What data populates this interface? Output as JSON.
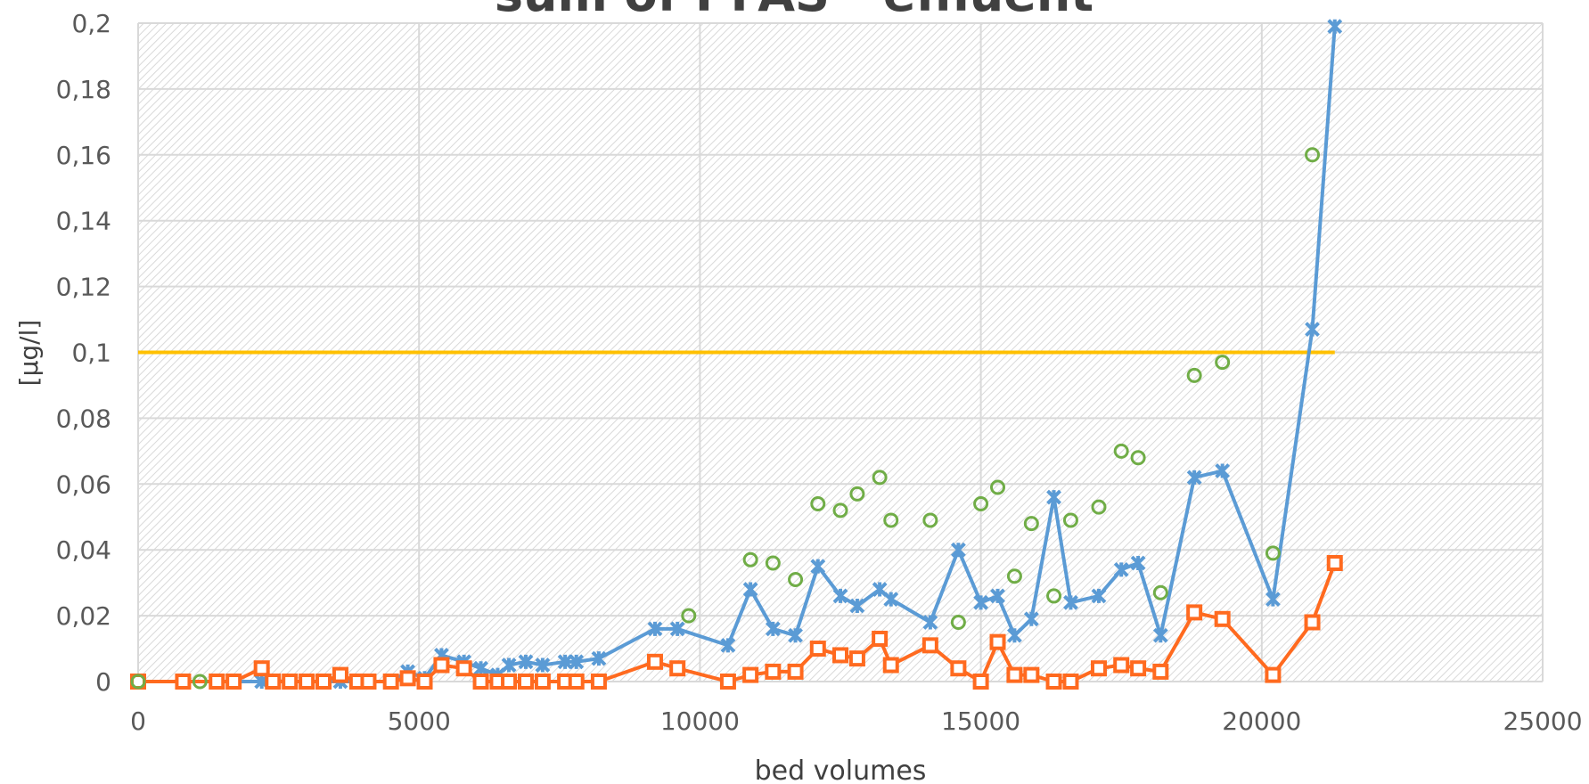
{
  "chart_data": {
    "type": "line",
    "title": "sum of PFAS - effluent",
    "x_label": "bed volumes",
    "y_label": "[µg/l]",
    "xlim": [
      0,
      25000
    ],
    "xticks": [
      0,
      5000,
      10000,
      15000,
      20000,
      25000
    ],
    "ylim": [
      0,
      0.2
    ],
    "yticks": [
      0,
      {
        "value": 0.02,
        "label": "0,02"
      },
      {
        "value": 0.04,
        "label": "0,04"
      },
      {
        "value": 0.06,
        "label": "0,06"
      },
      {
        "value": 0.08,
        "label": "0,08"
      },
      {
        "value": 0.1,
        "label": "0,1"
      },
      {
        "value": 0.12,
        "label": "0,12"
      },
      {
        "value": 0.14,
        "label": "0,14"
      },
      {
        "value": 0.16,
        "label": "0,16"
      },
      {
        "value": 0.18,
        "label": "0,18"
      },
      {
        "value": 0.2,
        "label": "0,2"
      }
    ],
    "grid": true,
    "series": [
      {
        "color": "#ffc000",
        "marker": "none",
        "line": true,
        "x": [
          0,
          21300
        ],
        "values": [
          0.1,
          0.1
        ]
      },
      {
        "color": "#5b9bd5",
        "marker": "cross",
        "line": true,
        "x": [
          0,
          800,
          1400,
          1700,
          2200,
          2400,
          2700,
          3000,
          3300,
          3600,
          3900,
          4100,
          4500,
          4800,
          5100,
          5400,
          5800,
          6100,
          6400,
          6600,
          6900,
          7200,
          7600,
          7800,
          8200,
          9200,
          9600,
          10500,
          10900,
          11300,
          11700,
          12100,
          12500,
          12800,
          13200,
          13400,
          14100,
          14600,
          15000,
          15300,
          15600,
          15900,
          16300,
          16600,
          17100,
          17500,
          17800,
          18200,
          18800,
          19300,
          20200,
          20900,
          21300
        ],
        "values": [
          0,
          0,
          0,
          0,
          0,
          0,
          0,
          0,
          0,
          0,
          0,
          0,
          0,
          0.003,
          0.001,
          0.008,
          0.006,
          0.004,
          0.002,
          0.005,
          0.006,
          0.005,
          0.006,
          0.006,
          0.007,
          0.016,
          0.016,
          0.011,
          0.028,
          0.016,
          0.014,
          0.035,
          0.026,
          0.023,
          0.028,
          0.025,
          0.018,
          0.04,
          0.024,
          0.026,
          0.014,
          0.019,
          0.056,
          0.024,
          0.026,
          0.034,
          0.036,
          0.014,
          0.062,
          0.064,
          0.025,
          0.107,
          0.199
        ]
      },
      {
        "color": "#ff6a1f",
        "marker": "square",
        "line": true,
        "x": [
          0,
          800,
          1400,
          1700,
          2200,
          2400,
          2700,
          3000,
          3300,
          3600,
          3900,
          4100,
          4500,
          4800,
          5100,
          5400,
          5800,
          6100,
          6400,
          6600,
          6900,
          7200,
          7600,
          7800,
          8200,
          9200,
          9600,
          10500,
          10900,
          11300,
          11700,
          12100,
          12500,
          12800,
          13200,
          13400,
          14100,
          14600,
          15000,
          15300,
          15600,
          15900,
          16300,
          16600,
          17100,
          17500,
          17800,
          18200,
          18800,
          19300,
          20200,
          20900,
          21300
        ],
        "values": [
          0,
          0,
          0,
          0,
          0.004,
          0,
          0,
          0,
          0,
          0.002,
          0,
          0,
          0,
          0.001,
          0,
          0.005,
          0.004,
          0,
          0,
          0,
          0,
          0,
          0,
          0,
          0,
          0.006,
          0.004,
          0,
          0.002,
          0.003,
          0.003,
          0.01,
          0.008,
          0.007,
          0.013,
          0.005,
          0.011,
          0.004,
          0,
          0.012,
          0.002,
          0.002,
          0,
          0,
          0.004,
          0.005,
          0.004,
          0.003,
          0.021,
          0.019,
          0.002,
          0.018,
          0.036
        ]
      },
      {
        "color": "#70ad47",
        "marker": "circle",
        "line": false,
        "x": [
          0,
          1100,
          9800,
          10900,
          11300,
          11700,
          12100,
          12500,
          12800,
          13200,
          13400,
          14100,
          14600,
          15000,
          15300,
          15600,
          15900,
          16300,
          16600,
          17100,
          17500,
          17800,
          18200,
          18800,
          19300,
          20200,
          20900
        ],
        "values": [
          0,
          0,
          0.02,
          0.037,
          0.036,
          0.031,
          0.054,
          0.052,
          0.057,
          0.062,
          0.049,
          0.049,
          0.018,
          0.054,
          0.059,
          0.032,
          0.048,
          0.026,
          0.049,
          0.053,
          0.07,
          0.068,
          0.027,
          0.093,
          0.097,
          0.039,
          0.16
        ]
      }
    ]
  }
}
